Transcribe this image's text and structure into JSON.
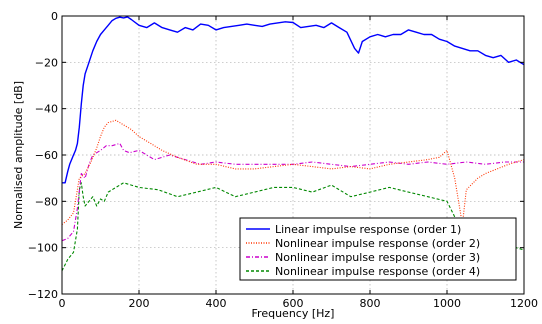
{
  "chart_data": {
    "type": "line",
    "xlabel": "Frequency [Hz]",
    "ylabel": "Normalised amplitude [dB]",
    "xlim": [
      0,
      1200
    ],
    "ylim": [
      -120,
      0
    ],
    "xticks": [
      "0",
      "200",
      "400",
      "600",
      "800",
      "1000",
      "1200"
    ],
    "yticks": [
      "0",
      "−20",
      "−40",
      "−60",
      "−80",
      "−100",
      "−120"
    ],
    "grid": true,
    "legend_position": "bottom-right",
    "series": [
      {
        "name": "Linear impulse response (order 1)",
        "color": "#0000ff",
        "style": "solid",
        "x": [
          0,
          8,
          15,
          20,
          25,
          30,
          35,
          40,
          45,
          50,
          55,
          60,
          70,
          80,
          90,
          100,
          110,
          120,
          130,
          140,
          150,
          160,
          170,
          180,
          200,
          220,
          240,
          260,
          280,
          300,
          320,
          340,
          360,
          380,
          400,
          420,
          440,
          460,
          480,
          500,
          520,
          540,
          560,
          580,
          600,
          620,
          640,
          660,
          680,
          700,
          720,
          740,
          760,
          770,
          780,
          800,
          820,
          840,
          860,
          880,
          900,
          920,
          940,
          960,
          980,
          1000,
          1020,
          1040,
          1060,
          1080,
          1100,
          1120,
          1140,
          1160,
          1180,
          1200
        ],
        "y": [
          -72,
          -72,
          -67,
          -64,
          -62,
          -60,
          -58,
          -55,
          -48,
          -38,
          -30,
          -25,
          -20,
          -15,
          -11,
          -8,
          -6,
          -4,
          -2,
          -1,
          -0.5,
          -0.8,
          -0.4,
          -1.5,
          -4,
          -5,
          -3,
          -5,
          -6,
          -7,
          -5,
          -6,
          -3.5,
          -4,
          -6,
          -5,
          -4.5,
          -4,
          -3.5,
          -4,
          -4.5,
          -3.5,
          -3,
          -2.5,
          -2.8,
          -5,
          -4.5,
          -4,
          -5,
          -3,
          -5,
          -7,
          -14,
          -16,
          -11,
          -9,
          -8,
          -9,
          -8,
          -8,
          -6,
          -7,
          -8,
          -8,
          -10,
          -11,
          -13,
          -14,
          -15,
          -15,
          -17,
          -18,
          -17,
          -20,
          -19,
          -21
        ]
      },
      {
        "name": "Nonlinear impulse response (order 2)",
        "color": "#ff3300",
        "style": "dotted",
        "x": [
          0,
          15,
          30,
          45,
          60,
          75,
          90,
          100,
          110,
          120,
          140,
          160,
          180,
          200,
          230,
          260,
          300,
          350,
          400,
          450,
          500,
          550,
          600,
          650,
          700,
          750,
          800,
          850,
          900,
          950,
          980,
          1000,
          1020,
          1040,
          1050,
          1080,
          1100,
          1130,
          1160,
          1180,
          1200
        ],
        "y": [
          -90,
          -88,
          -85,
          -70,
          -68,
          -63,
          -57,
          -52,
          -48,
          -46,
          -45,
          -47,
          -49,
          -52,
          -55,
          -58,
          -61,
          -64,
          -64,
          -66,
          -66,
          -65,
          -64,
          -65,
          -66,
          -65,
          -66,
          -64,
          -63,
          -62,
          -61,
          -58,
          -70,
          -90,
          -75,
          -70,
          -68,
          -66,
          -64,
          -63,
          -62
        ]
      },
      {
        "name": "Nonlinear impulse response (order 3)",
        "color": "#cc00cc",
        "style": "dashdot",
        "x": [
          0,
          15,
          30,
          40,
          50,
          60,
          70,
          80,
          90,
          100,
          115,
          130,
          150,
          160,
          175,
          200,
          240,
          280,
          320,
          360,
          400,
          450,
          500,
          550,
          600,
          650,
          700,
          750,
          800,
          850,
          900,
          950,
          1000,
          1050,
          1100,
          1150,
          1200
        ],
        "y": [
          -97,
          -96,
          -93,
          -83,
          -68,
          -70,
          -64,
          -60,
          -59,
          -58,
          -56,
          -56,
          -55,
          -58,
          -59,
          -58,
          -62,
          -60,
          -62,
          -64,
          -63,
          -64,
          -64,
          -64,
          -64,
          -63,
          -64,
          -65,
          -64,
          -63,
          -64,
          -63,
          -64,
          -63,
          -64,
          -63,
          -63
        ]
      },
      {
        "name": "Nonlinear impulse response (order 4)",
        "color": "#008800",
        "style": "dashed",
        "x": [
          0,
          15,
          30,
          40,
          45,
          50,
          55,
          60,
          70,
          80,
          90,
          100,
          110,
          120,
          140,
          160,
          180,
          200,
          250,
          300,
          350,
          400,
          450,
          500,
          550,
          600,
          650,
          700,
          750,
          800,
          850,
          900,
          950,
          1000,
          1030,
          1050,
          1080,
          1100,
          1130,
          1160,
          1180,
          1200
        ],
        "y": [
          -110,
          -105,
          -102,
          -92,
          -75,
          -72,
          -78,
          -82,
          -80,
          -78,
          -82,
          -79,
          -80,
          -76,
          -74,
          -72,
          -73,
          -74,
          -75,
          -78,
          -76,
          -74,
          -78,
          -76,
          -74,
          -74,
          -76,
          -73,
          -78,
          -76,
          -74,
          -76,
          -78,
          -80,
          -90,
          -88,
          -98,
          -100,
          -104,
          -102,
          -100,
          -101
        ]
      }
    ]
  }
}
